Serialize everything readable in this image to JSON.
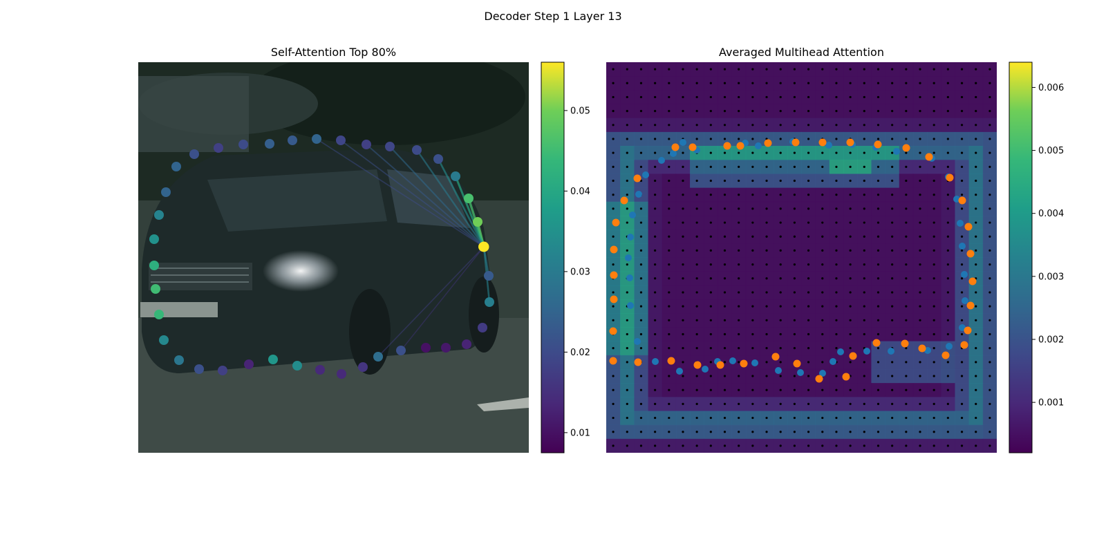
{
  "figure": {
    "suptitle": "Decoder Step 1 Layer 13",
    "left_title": "Self-Attention Top 80%",
    "right_title": "Averaged Multihead Attention"
  },
  "chart_data": [
    {
      "type": "scatter",
      "title": "Self-Attention Top 80%",
      "description": "Polygon vertices over car image colored by self-attention weight; lines from the query vertex to its top attended vertices",
      "colormap": "viridis",
      "colorbar": {
        "min": 0.0075,
        "max": 0.056,
        "ticks": [
          0.01,
          0.02,
          0.03,
          0.04,
          0.05
        ]
      },
      "query_index": 42,
      "points": [
        {
          "x": 255,
          "y": 241,
          "v": 0.025
        },
        {
          "x": 281,
          "y": 223,
          "v": 0.021
        },
        {
          "x": 316,
          "y": 214,
          "v": 0.018
        },
        {
          "x": 352,
          "y": 209,
          "v": 0.02
        },
        {
          "x": 390,
          "y": 208,
          "v": 0.024
        },
        {
          "x": 423,
          "y": 203,
          "v": 0.023
        },
        {
          "x": 458,
          "y": 201,
          "v": 0.025
        },
        {
          "x": 493,
          "y": 203,
          "v": 0.019
        },
        {
          "x": 530,
          "y": 209,
          "v": 0.018
        },
        {
          "x": 564,
          "y": 212,
          "v": 0.019
        },
        {
          "x": 603,
          "y": 217,
          "v": 0.02
        },
        {
          "x": 634,
          "y": 230,
          "v": 0.021
        },
        {
          "x": 659,
          "y": 255,
          "v": 0.03
        },
        {
          "x": 678,
          "y": 287,
          "v": 0.046
        },
        {
          "x": 691,
          "y": 321,
          "v": 0.05
        },
        {
          "x": 699,
          "y": 357,
          "v": 0.056
        },
        {
          "x": 707,
          "y": 399,
          "v": 0.023
        },
        {
          "x": 708,
          "y": 437,
          "v": 0.031
        },
        {
          "x": 698,
          "y": 474,
          "v": 0.017
        },
        {
          "x": 675,
          "y": 498,
          "v": 0.013
        },
        {
          "x": 645,
          "y": 503,
          "v": 0.011
        },
        {
          "x": 616,
          "y": 503,
          "v": 0.01
        },
        {
          "x": 580,
          "y": 507,
          "v": 0.021
        },
        {
          "x": 547,
          "y": 516,
          "v": 0.027
        },
        {
          "x": 525,
          "y": 531,
          "v": 0.016
        },
        {
          "x": 494,
          "y": 541,
          "v": 0.014
        },
        {
          "x": 463,
          "y": 535,
          "v": 0.014
        },
        {
          "x": 430,
          "y": 529,
          "v": 0.034
        },
        {
          "x": 395,
          "y": 520,
          "v": 0.036
        },
        {
          "x": 360,
          "y": 527,
          "v": 0.013
        },
        {
          "x": 322,
          "y": 536,
          "v": 0.018
        },
        {
          "x": 288,
          "y": 534,
          "v": 0.021
        },
        {
          "x": 259,
          "y": 521,
          "v": 0.029
        },
        {
          "x": 237,
          "y": 492,
          "v": 0.033
        },
        {
          "x": 230,
          "y": 455,
          "v": 0.044
        },
        {
          "x": 225,
          "y": 418,
          "v": 0.045
        },
        {
          "x": 223,
          "y": 384,
          "v": 0.042
        },
        {
          "x": 223,
          "y": 346,
          "v": 0.035
        },
        {
          "x": 230,
          "y": 311,
          "v": 0.032
        },
        {
          "x": 240,
          "y": 278,
          "v": 0.025
        }
      ],
      "query_point": {
        "x": 700,
        "y": 357,
        "v": 0.056
      },
      "attention_lines": [
        {
          "to": [
            691,
            321
          ],
          "v": 0.048
        },
        {
          "to": [
            678,
            287
          ],
          "v": 0.046
        },
        {
          "to": [
            659,
            255
          ],
          "v": 0.04
        },
        {
          "to": [
            634,
            230
          ],
          "v": 0.034
        },
        {
          "to": [
            603,
            217
          ],
          "v": 0.03
        },
        {
          "to": [
            564,
            212
          ],
          "v": 0.026
        },
        {
          "to": [
            530,
            209
          ],
          "v": 0.023
        },
        {
          "to": [
            493,
            203
          ],
          "v": 0.021
        },
        {
          "to": [
            458,
            201
          ],
          "v": 0.02
        },
        {
          "to": [
            707,
            399
          ],
          "v": 0.03
        },
        {
          "to": [
            708,
            437
          ],
          "v": 0.032
        },
        {
          "to": [
            547,
            516
          ],
          "v": 0.018
        },
        {
          "to": [
            580,
            507
          ],
          "v": 0.016
        }
      ]
    },
    {
      "type": "heatmap",
      "title": "Averaged Multihead Attention",
      "colormap": "viridis",
      "colorbar": {
        "min": 0.0002,
        "max": 0.0064,
        "ticks": [
          0.001,
          0.002,
          0.003,
          0.004,
          0.005,
          0.006
        ]
      },
      "grid_size": 28,
      "series": [
        {
          "name": "blue",
          "points": [
            [
              988,
              206
            ],
            [
              1078,
              207
            ],
            [
              1097,
              211
            ],
            [
              1147,
              205
            ],
            [
              1199,
              210
            ],
            [
              1233,
              209
            ],
            [
              1267,
              213
            ],
            [
              1297,
              219
            ],
            [
              1348,
              229
            ],
            [
              1372,
              256
            ],
            [
              1384,
              288
            ],
            [
              1389,
              323
            ],
            [
              1392,
              356
            ],
            [
              1395,
              397
            ],
            [
              1396,
              435
            ],
            [
              1392,
              474
            ],
            [
              1373,
              501
            ],
            [
              1342,
              507
            ],
            [
              1289,
              508
            ],
            [
              1254,
              508
            ],
            [
              1216,
              509
            ],
            [
              1205,
              523
            ],
            [
              1190,
              540
            ],
            [
              1158,
              539
            ],
            [
              1126,
              536
            ],
            [
              1092,
              525
            ],
            [
              1060,
              522
            ],
            [
              1038,
              523
            ],
            [
              1020,
              534
            ],
            [
              983,
              537
            ],
            [
              948,
              523
            ],
            [
              922,
              494
            ],
            [
              912,
              442
            ],
            [
              911,
              402
            ],
            [
              909,
              373
            ],
            [
              912,
              343
            ],
            [
              915,
              311
            ],
            [
              924,
              281
            ],
            [
              934,
              253
            ],
            [
              957,
              232
            ],
            [
              974,
              222
            ],
            [
              1008,
              217
            ]
          ]
        },
        {
          "name": "orange",
          "points": [
            [
              977,
              213
            ],
            [
              1002,
              213
            ],
            [
              1052,
              211
            ],
            [
              1071,
              211
            ],
            [
              1111,
              207
            ],
            [
              1151,
              206
            ],
            [
              1190,
              206
            ],
            [
              1230,
              206
            ],
            [
              1270,
              209
            ],
            [
              1311,
              214
            ],
            [
              1344,
              227
            ],
            [
              1374,
              257
            ],
            [
              1392,
              290
            ],
            [
              1401,
              328
            ],
            [
              1404,
              367
            ],
            [
              1407,
              407
            ],
            [
              1404,
              442
            ],
            [
              1400,
              478
            ],
            [
              1395,
              499
            ],
            [
              1368,
              514
            ],
            [
              1334,
              504
            ],
            [
              1309,
              497
            ],
            [
              1268,
              496
            ],
            [
              1234,
              515
            ],
            [
              1224,
              545
            ],
            [
              1185,
              548
            ],
            [
              1153,
              526
            ],
            [
              1122,
              516
            ],
            [
              1076,
              526
            ],
            [
              1042,
              528
            ],
            [
              1009,
              528
            ],
            [
              971,
              522
            ],
            [
              923,
              524
            ],
            [
              887,
              522
            ],
            [
              887,
              479
            ],
            [
              888,
              433
            ],
            [
              888,
              398
            ],
            [
              888,
              361
            ],
            [
              891,
              322
            ],
            [
              903,
              290
            ],
            [
              922,
              258
            ]
          ]
        }
      ]
    }
  ]
}
